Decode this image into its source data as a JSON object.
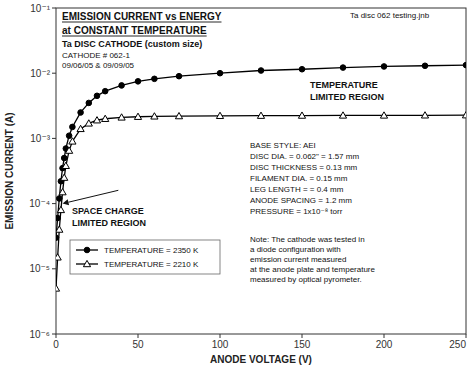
{
  "chart_data": {
    "type": "line",
    "title": [
      "EMISSION CURRENT vs ENERGY",
      "at CONSTANT TEMPERATURE"
    ],
    "subtitle": [
      "Ta DISC CATHODE (custom size)",
      "CATHODE # 062-1",
      "09/06/05 & 09/09/05"
    ],
    "xlabel": "ANODE VOLTAGE (V)",
    "ylabel": "EMISSION CURRENT (A)",
    "log": "y",
    "grid": false,
    "legend": "lower left",
    "xlim": [
      0,
      250
    ],
    "xticks": [
      0,
      50,
      100,
      150,
      200,
      250
    ],
    "ylim": [
      1e-06,
      0.1
    ],
    "yticks": [
      {
        "value": 1e-06,
        "label": "10⁻⁶"
      },
      {
        "value": 1e-05,
        "label": "10⁻⁵"
      },
      {
        "value": 0.0001,
        "label": "10⁻⁴"
      },
      {
        "value": 0.001,
        "label": "10⁻³"
      },
      {
        "value": 0.01,
        "label": "10⁻²"
      },
      {
        "value": 0.1,
        "label": "10⁻¹"
      }
    ],
    "x": [
      0,
      1,
      2,
      3,
      4,
      5,
      6,
      8,
      10,
      15,
      20,
      25,
      30,
      40,
      50,
      60,
      75,
      100,
      125,
      150,
      175,
      200,
      225,
      250
    ],
    "series": [
      {
        "name": "TEMPERATURE = 2350 K",
        "color": "#000000",
        "marker": "circle",
        "line_style": "solid",
        "values": [
          3e-05,
          6e-05,
          0.00012,
          0.00022,
          0.00035,
          0.0005,
          0.0007,
          0.0011,
          0.0015,
          0.0025,
          0.0035,
          0.0045,
          0.0053,
          0.0065,
          0.0075,
          0.0082,
          0.009,
          0.01,
          0.011,
          0.0115,
          0.0122,
          0.0127,
          0.013,
          0.0133
        ]
      },
      {
        "name": "TEMPERATURE = 2210 K",
        "color": "#000000",
        "marker": "triangle-open",
        "line_style": "solid",
        "values": [
          5e-06,
          1.5e-05,
          4e-05,
          8e-05,
          0.00015,
          0.00025,
          0.00038,
          0.00065,
          0.0009,
          0.0014,
          0.0017,
          0.0019,
          0.002,
          0.0021,
          0.00215,
          0.00218,
          0.0022,
          0.00222,
          0.00223,
          0.00224,
          0.00225,
          0.00225,
          0.00226,
          0.00227
        ]
      }
    ],
    "annotations": [
      {
        "lines": [
          "Ta disc 062 testing.jnb"
        ]
      },
      {
        "lines": [
          "TEMPERATURE",
          "LIMITED REGION"
        ]
      },
      {
        "lines": [
          "SPACE CHARGE",
          "LIMITED REGION"
        ],
        "arrow": {
          "x": [
            38,
            4
          ],
          "y": [
            0.00016,
            0.0001
          ]
        }
      },
      {
        "lines": [
          "BASE STYLE: AEI",
          "DISC DIA. = 0.062\" = 1.57 mm",
          "DISC THICKNESS = 0.13 mm",
          "FILAMENT DIA. = 0.15 mm",
          "LEG LENGTH = = 0.4 mm",
          "ANODE SPACING = 1.2 mm",
          "PRESSURE = 1x10⁻⁸ torr"
        ]
      },
      {
        "lines": [
          "Note: The cathode was tested in",
          "a diode configuration with",
          "emission current measured",
          "at the anode plate and temperature",
          "measured by optical pyrometer."
        ]
      }
    ]
  }
}
